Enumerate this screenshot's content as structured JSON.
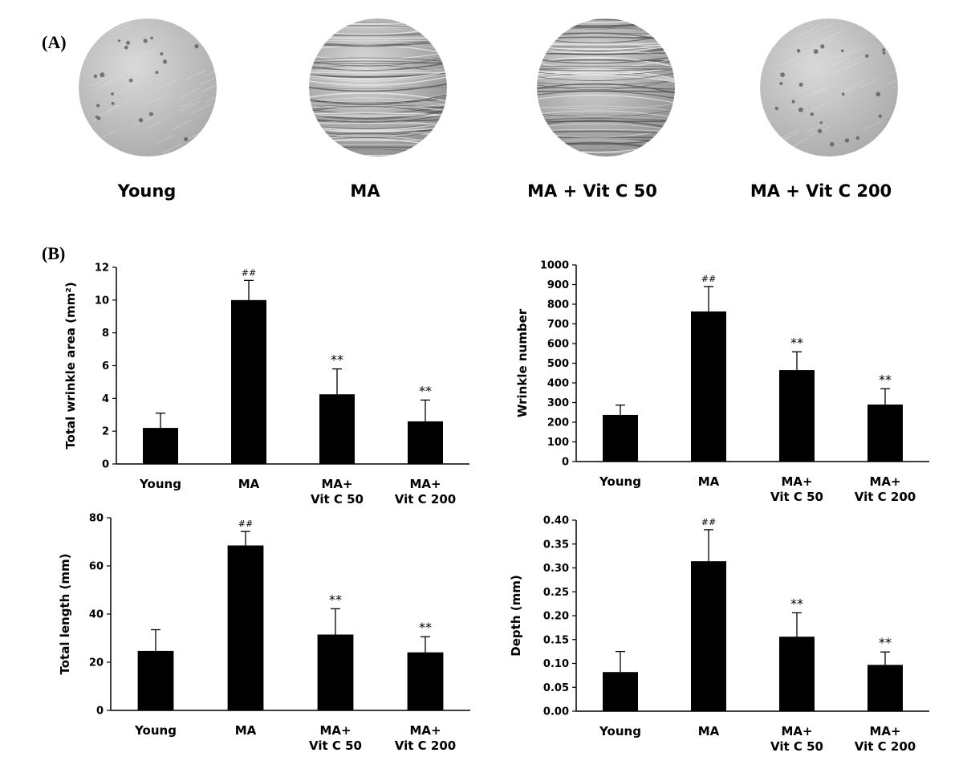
{
  "panel_labels": {
    "a": "(A)",
    "b": "(B)"
  },
  "photos": [
    {
      "label": "Young",
      "texture": "smooth"
    },
    {
      "label": "MA",
      "texture": "wrinkled"
    },
    {
      "label": "MA + Vit C 50",
      "texture": "wrinkled"
    },
    {
      "label": "MA + Vit C 200",
      "texture": "smooth"
    }
  ],
  "colors": {
    "bar": "#000000",
    "photo_base": "#b8b8b8",
    "photo_dark": "#6e6e6e"
  },
  "chart_data": [
    {
      "type": "bar",
      "categories": [
        [
          "Young"
        ],
        [
          "MA"
        ],
        [
          "MA+",
          "Vit C 50"
        ],
        [
          "MA+",
          "Vit C 200"
        ]
      ],
      "values": [
        2.2,
        10.0,
        4.25,
        2.6
      ],
      "errors": [
        0.9,
        1.2,
        1.55,
        1.3
      ],
      "annotations": [
        "",
        "##",
        "**",
        "**"
      ],
      "ylabel": "Total wrinkle area (mm²)",
      "ylim": [
        0,
        12
      ],
      "yticks": [
        0,
        2,
        4,
        6,
        8,
        10,
        12
      ],
      "ytick_labels": [
        "0",
        "2",
        "4",
        "6",
        "8",
        "10",
        "12"
      ]
    },
    {
      "type": "bar",
      "categories": [
        [
          "Young"
        ],
        [
          "MA"
        ],
        [
          "MA+",
          "Vit C 50"
        ],
        [
          "MA+",
          "Vit C 200"
        ]
      ],
      "values": [
        237,
        763,
        465,
        290
      ],
      "errors": [
        50,
        127,
        93,
        80
      ],
      "annotations": [
        "",
        "##",
        "**",
        "**"
      ],
      "ylabel": "Wrinkle number",
      "ylim": [
        0,
        1000
      ],
      "yticks": [
        0,
        100,
        200,
        300,
        400,
        500,
        600,
        700,
        800,
        900,
        1000
      ],
      "ytick_labels": [
        "0",
        "100",
        "200",
        "300",
        "400",
        "500",
        "600",
        "700",
        "800",
        "900",
        "1000"
      ]
    },
    {
      "type": "bar",
      "categories": [
        [
          "Young"
        ],
        [
          "MA"
        ],
        [
          "MA+",
          "Vit C 50"
        ],
        [
          "MA+",
          "Vit C 200"
        ]
      ],
      "values": [
        24.7,
        68.5,
        31.5,
        24.1
      ],
      "errors": [
        8.8,
        5.8,
        10.7,
        6.5
      ],
      "annotations": [
        "",
        "##",
        "**",
        "**"
      ],
      "ylabel": "Total length (mm)",
      "ylim": [
        0,
        80
      ],
      "yticks": [
        0,
        20,
        40,
        60,
        80
      ],
      "ytick_labels": [
        "0",
        "20",
        "40",
        "60",
        "80"
      ]
    },
    {
      "type": "bar",
      "categories": [
        [
          "Young"
        ],
        [
          "MA"
        ],
        [
          "MA+",
          "Vit C 50"
        ],
        [
          "MA+",
          "Vit C 200"
        ]
      ],
      "values": [
        0.082,
        0.314,
        0.156,
        0.097
      ],
      "errors": [
        0.043,
        0.066,
        0.05,
        0.027
      ],
      "annotations": [
        "",
        "##",
        "**",
        "**"
      ],
      "ylabel": "Depth (mm)",
      "ylim": [
        0,
        0.4
      ],
      "yticks": [
        0,
        0.05,
        0.1,
        0.15,
        0.2,
        0.25,
        0.3,
        0.35,
        0.4
      ],
      "ytick_labels": [
        "0.00",
        "0.05",
        "0.10",
        "0.15",
        "0.20",
        "0.25",
        "0.30",
        "0.35",
        "0.40"
      ]
    }
  ]
}
